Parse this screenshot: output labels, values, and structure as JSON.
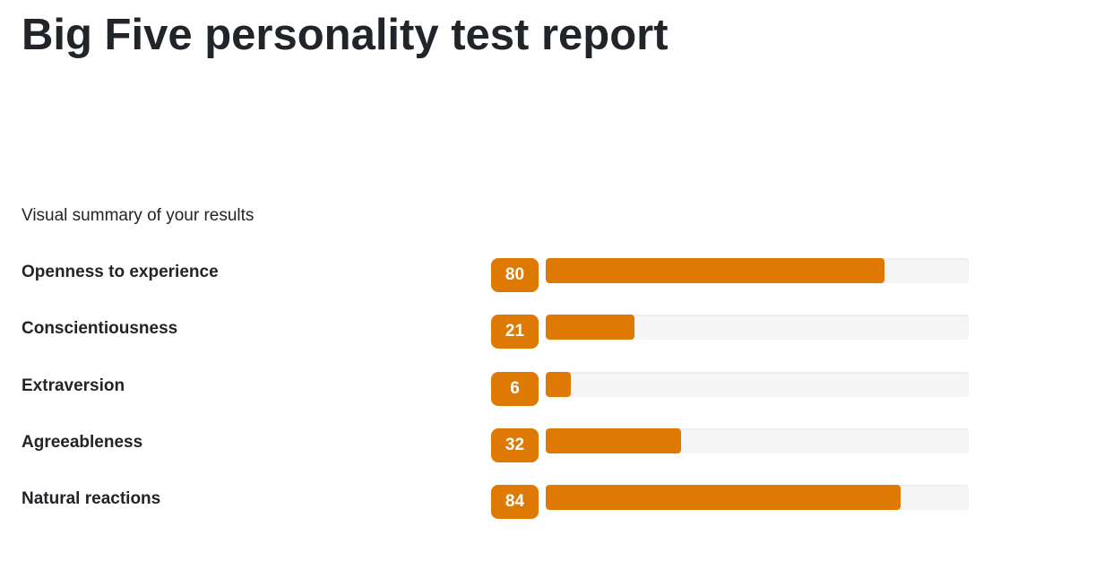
{
  "page": {
    "title": "Big Five personality test report",
    "summary_label": "Visual summary of your results"
  },
  "colors": {
    "accent": "#de7a03",
    "track": "#f5f5f5",
    "text": "#212529"
  },
  "chart_data": {
    "type": "bar",
    "orientation": "horizontal",
    "categories": [
      "Openness to experience",
      "Conscientiousness",
      "Extraversion",
      "Agreeableness",
      "Natural reactions"
    ],
    "values": [
      80,
      21,
      6,
      32,
      84
    ],
    "value_labels": [
      "80",
      "21",
      "6",
      "32",
      "84"
    ],
    "xlim": [
      0,
      100
    ],
    "grid": false
  }
}
